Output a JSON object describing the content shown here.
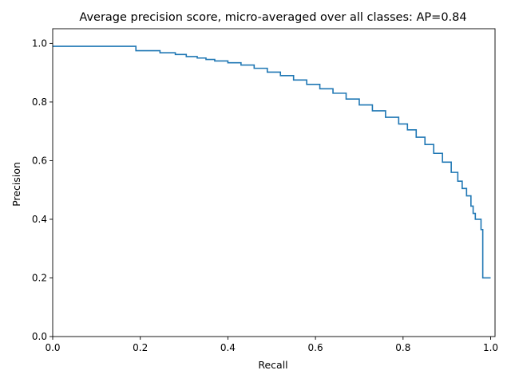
{
  "chart_data": {
    "type": "line",
    "step": "post",
    "title": "Average precision score, micro-averaged over all classes: AP=0.84",
    "xlabel": "Recall",
    "ylabel": "Precision",
    "xlim": [
      0.0,
      1.01
    ],
    "ylim": [
      0.0,
      1.05
    ],
    "grid": false,
    "legend": "none",
    "line_color": "#1f77b4",
    "x_ticks": [
      0.0,
      0.2,
      0.4,
      0.6,
      0.8,
      1.0
    ],
    "y_ticks": [
      0.0,
      0.2,
      0.4,
      0.6,
      0.8,
      1.0
    ],
    "x_tick_labels": [
      "0.0",
      "0.2",
      "0.4",
      "0.6",
      "0.8",
      "1.0"
    ],
    "y_tick_labels": [
      "0.0",
      "0.2",
      "0.4",
      "0.6",
      "0.8",
      "1.0"
    ],
    "series": [
      {
        "x": [
          0.0,
          0.19,
          0.245,
          0.28,
          0.305,
          0.33,
          0.35,
          0.37,
          0.4,
          0.43,
          0.46,
          0.49,
          0.52,
          0.55,
          0.58,
          0.61,
          0.64,
          0.67,
          0.7,
          0.73,
          0.76,
          0.79,
          0.81,
          0.83,
          0.85,
          0.87,
          0.89,
          0.91,
          0.925,
          0.935,
          0.945,
          0.955,
          0.96,
          0.965,
          0.97,
          0.978,
          0.982,
          0.99,
          1.0
        ],
        "y": [
          0.99,
          0.975,
          0.968,
          0.962,
          0.955,
          0.95,
          0.945,
          0.94,
          0.934,
          0.926,
          0.915,
          0.902,
          0.89,
          0.875,
          0.86,
          0.845,
          0.83,
          0.81,
          0.79,
          0.77,
          0.748,
          0.725,
          0.705,
          0.68,
          0.655,
          0.625,
          0.595,
          0.56,
          0.53,
          0.505,
          0.48,
          0.445,
          0.42,
          0.4,
          0.4,
          0.365,
          0.2,
          0.2,
          0.2
        ]
      }
    ]
  }
}
